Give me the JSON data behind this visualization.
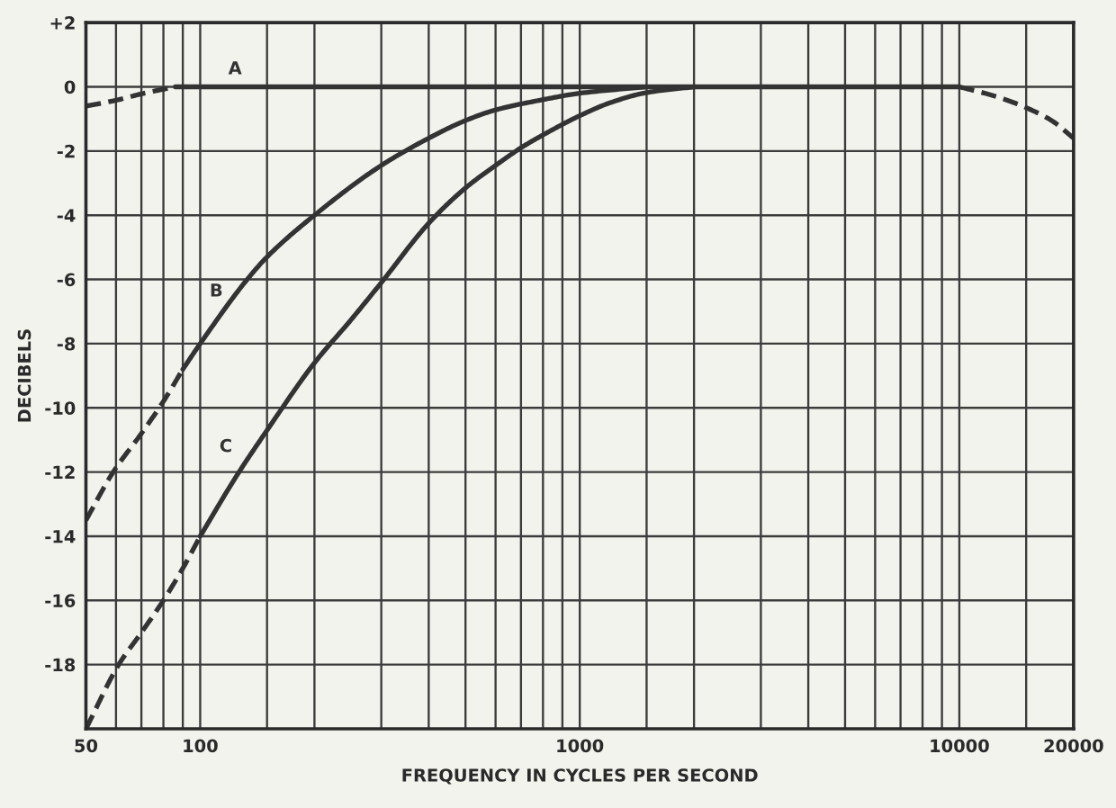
{
  "chart_data": {
    "type": "line",
    "xlabel": "FREQUENCY IN CYCLES PER SECOND",
    "ylabel": "DECIBELS",
    "log": "x",
    "grid": true,
    "xlim": [
      50,
      20000
    ],
    "ylim": [
      -20,
      2
    ],
    "xticks": [
      50,
      {
        "value": 60,
        "label": null
      },
      {
        "value": 70,
        "label": null
      },
      {
        "value": 80,
        "label": null
      },
      {
        "value": 90,
        "label": null
      },
      100,
      {
        "value": 150,
        "label": null
      },
      {
        "value": 200,
        "label": null
      },
      {
        "value": 300,
        "label": null
      },
      {
        "value": 400,
        "label": null
      },
      {
        "value": 500,
        "label": null
      },
      {
        "value": 600,
        "label": null
      },
      {
        "value": 700,
        "label": null
      },
      {
        "value": 800,
        "label": null
      },
      {
        "value": 900,
        "label": null
      },
      1000,
      {
        "value": 1500,
        "label": null
      },
      {
        "value": 2000,
        "label": null
      },
      {
        "value": 3000,
        "label": null
      },
      {
        "value": 4000,
        "label": null
      },
      {
        "value": 5000,
        "label": null
      },
      {
        "value": 6000,
        "label": null
      },
      {
        "value": 7000,
        "label": null
      },
      {
        "value": 8000,
        "label": null
      },
      {
        "value": 9000,
        "label": null
      },
      10000,
      {
        "value": 15000,
        "label": null
      },
      20000
    ],
    "yticks": [
      {
        "value": 2,
        "label": "+2"
      },
      0,
      -2,
      -4,
      -6,
      -8,
      -10,
      -12,
      -14,
      -16,
      -18
    ],
    "series": [
      {
        "name": "A",
        "color": "#333333",
        "line_style": "solid",
        "x": [
          86,
          10000
        ],
        "values": [
          0,
          0
        ]
      },
      {
        "color": "#333333",
        "line_style": "dashed",
        "x": [
          50,
          60,
          70,
          86
        ],
        "values": [
          -0.6,
          -0.42,
          -0.22,
          0
        ]
      },
      {
        "color": "#333333",
        "line_style": "dashed",
        "x": [
          10000,
          12500,
          15000,
          17500,
          20000
        ],
        "values": [
          0,
          -0.3,
          -0.65,
          -1.05,
          -1.6
        ]
      },
      {
        "name": "B",
        "color": "#333333",
        "line_style": "solid",
        "x": [
          90,
          100,
          133,
          150,
          200,
          300,
          400,
          500,
          600,
          800,
          1000,
          1500
        ],
        "values": [
          -8.8,
          -8.0,
          -6.0,
          -5.3,
          -4.0,
          -2.45,
          -1.6,
          -1.05,
          -0.72,
          -0.4,
          -0.2,
          0
        ]
      },
      {
        "color": "#333333",
        "line_style": "dashed",
        "x": [
          50,
          59,
          70,
          80,
          90
        ],
        "values": [
          -13.5,
          -12.0,
          -10.8,
          -9.8,
          -8.8
        ]
      },
      {
        "name": "C",
        "color": "#333333",
        "line_style": "solid",
        "x": [
          100,
          125,
          150,
          200,
          250,
          300,
          400,
          500,
          600,
          700,
          800,
          1000,
          1200,
          1500,
          2000
        ],
        "values": [
          -14.0,
          -12.1,
          -10.7,
          -8.6,
          -7.25,
          -6.1,
          -4.25,
          -3.15,
          -2.45,
          -1.9,
          -1.5,
          -0.9,
          -0.5,
          -0.18,
          0
        ]
      },
      {
        "color": "#333333",
        "line_style": "dashed",
        "x": [
          50,
          61,
          70,
          80,
          90,
          100
        ],
        "values": [
          -20.0,
          -18.0,
          -17.0,
          -16.0,
          -15.0,
          -14.0
        ]
      }
    ]
  }
}
